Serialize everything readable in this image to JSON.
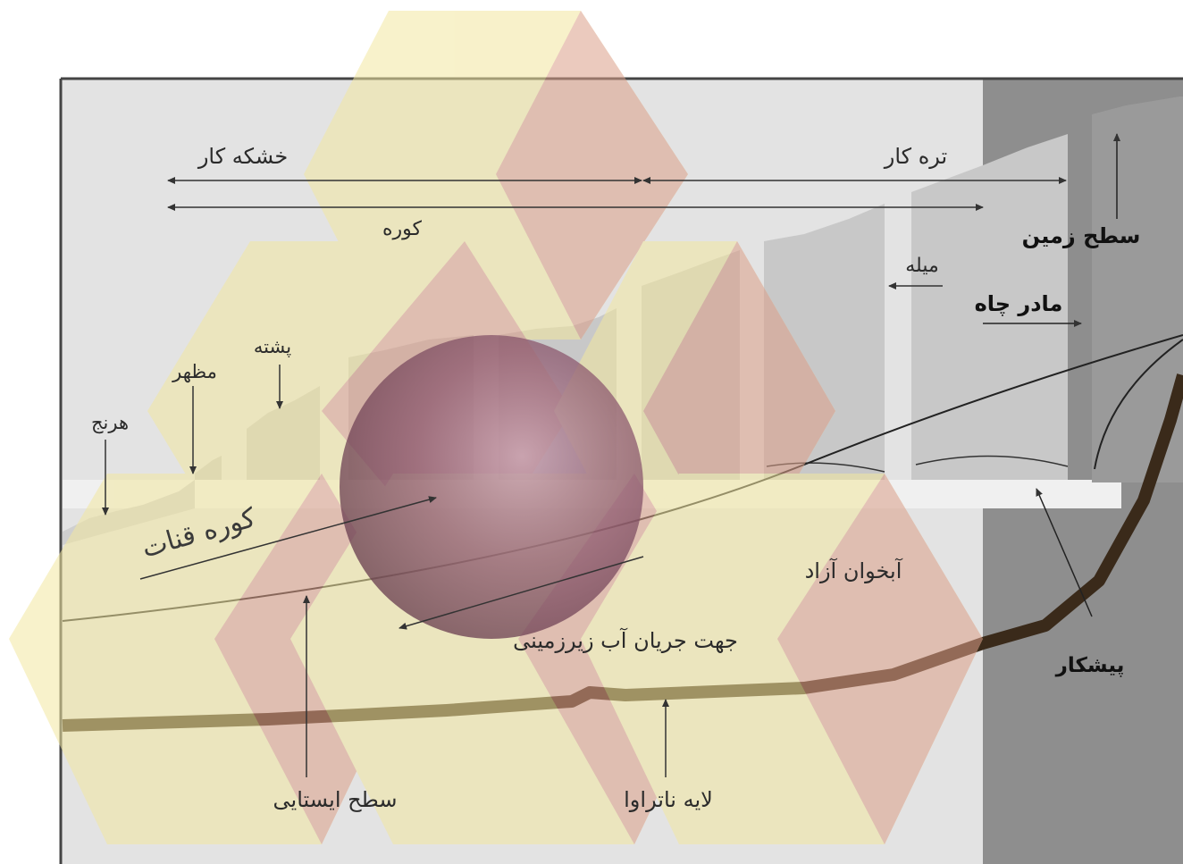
{
  "diagram": {
    "labels": {
      "dry_section": "خشکه کار",
      "wet_section": "تره کار",
      "kooreh": "کوره",
      "ground_surface": "سطح زمین",
      "mileh": "میله",
      "mother_well": "مادر چاه",
      "poshteh": "پشته",
      "mazhar": "مظهر",
      "harenj": "هرنج",
      "qanat_tunnel": "کوره قنات",
      "free_aquifer": "آبخوان آزاد",
      "groundwater_flow": "جهت جریان آب زیرزمینی",
      "pishkar": "پیشکار",
      "water_table": "سطح ایستایی",
      "impermeable_layer": "لایه ناتراوا"
    },
    "colors": {
      "background_light": "#e3e3e3",
      "background_dark": "#8e8e8e",
      "well_fill": "#c8c8c8",
      "tunnel_fill": "#f0f0f0",
      "overlay_yellow": "#f3e7a0",
      "overlay_pink": "#dca089",
      "impermeable_layer": "#3a2a1a",
      "sphere": "#8a5a6e",
      "line": "#333333"
    }
  }
}
